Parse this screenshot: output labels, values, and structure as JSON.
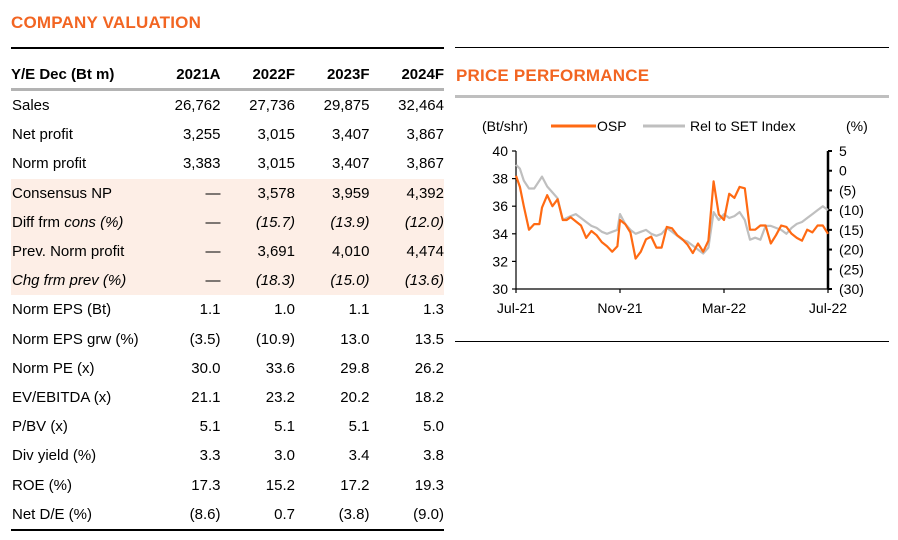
{
  "valuation": {
    "title": "COMPANY VALUATION",
    "header": {
      "label": "Y/E Dec (Bt m)",
      "years": [
        "2021A",
        "2022F",
        "2023F",
        "2024F"
      ]
    },
    "rows": [
      {
        "label": "Sales",
        "values": [
          "26,762",
          "27,736",
          "29,875",
          "32,464"
        ],
        "shaded": false
      },
      {
        "label": "Net profit",
        "values": [
          "3,255",
          "3,015",
          "3,407",
          "3,867"
        ],
        "shaded": false
      },
      {
        "label": "Norm profit",
        "values": [
          "3,383",
          "3,015",
          "3,407",
          "3,867"
        ],
        "shaded": false
      },
      {
        "label": "Consensus NP",
        "values": [
          "—",
          "3,578",
          "3,959",
          "4,392"
        ],
        "shaded": true
      },
      {
        "label_plain": "Diff frm ",
        "label_italic": "cons (%)",
        "values": [
          "—",
          "(15.7)",
          "(13.9)",
          "(12.0)"
        ],
        "shaded": true,
        "italic_values": true
      },
      {
        "label": "Prev. Norm profit",
        "values": [
          "—",
          "3,691",
          "4,010",
          "4,474"
        ],
        "shaded": true
      },
      {
        "label_italic_full": "Chg frm prev (%)",
        "values": [
          "—",
          "(18.3)",
          "(15.0)",
          "(13.6)"
        ],
        "shaded": true,
        "italic_values": true
      },
      {
        "label": "Norm EPS (Bt)",
        "values": [
          "1.1",
          "1.0",
          "1.1",
          "1.3"
        ],
        "shaded": false
      },
      {
        "label": "Norm EPS grw (%)",
        "values": [
          "(3.5)",
          "(10.9)",
          "13.0",
          "13.5"
        ],
        "shaded": false
      },
      {
        "label": "Norm PE (x)",
        "values": [
          "30.0",
          "33.6",
          "29.8",
          "26.2"
        ],
        "shaded": false
      },
      {
        "label": "EV/EBITDA (x)",
        "values": [
          "21.1",
          "23.2",
          "20.2",
          "18.2"
        ],
        "shaded": false
      },
      {
        "label": "P/BV (x)",
        "values": [
          "5.1",
          "5.1",
          "5.1",
          "5.0"
        ],
        "shaded": false
      },
      {
        "label": "Div yield (%)",
        "values": [
          "3.3",
          "3.0",
          "3.4",
          "3.8"
        ],
        "shaded": false
      },
      {
        "label": "ROE (%)",
        "values": [
          "17.3",
          "15.2",
          "17.2",
          "19.3"
        ],
        "shaded": false
      },
      {
        "label": "Net D/E (%)",
        "values": [
          "(8.6)",
          "0.7",
          "(3.8)",
          "(9.0)"
        ],
        "shaded": false
      }
    ]
  },
  "price_performance": {
    "title": "PRICE PERFORMANCE"
  },
  "colors": {
    "accent": "#f26522",
    "osp": "#ff6a13",
    "rel": "#bfbfbf",
    "shade": "#fdeee6"
  },
  "chart_data": {
    "type": "line",
    "title": "PRICE PERFORMANCE",
    "ylabel_left": "(Bt/shr)",
    "ylabel_right": "(%)",
    "xlabel": "",
    "x_tick_labels": [
      "Jul-21",
      "Nov-21",
      "Mar-22",
      "Jul-22"
    ],
    "x_range_months": [
      0,
      12
    ],
    "ylim_left": [
      30,
      40
    ],
    "yticks_left": [
      "40",
      "38",
      "36",
      "34",
      "32",
      "30"
    ],
    "ylim_right": [
      -30,
      5
    ],
    "yticks_right": [
      "5",
      "0",
      "(5)",
      "(10)",
      "(15)",
      "(20)",
      "(25)",
      "(30)"
    ],
    "legend": [
      "OSP",
      "Rel to SET Index"
    ],
    "legend_position": "top",
    "grid": false,
    "series": [
      {
        "name": "OSP",
        "axis": "left",
        "x": [
          0,
          0.15,
          0.3,
          0.5,
          0.7,
          0.9,
          1.0,
          1.2,
          1.4,
          1.6,
          1.8,
          1.95,
          2.1,
          2.3,
          2.5,
          2.7,
          2.9,
          3.1,
          3.3,
          3.5,
          3.7,
          3.9,
          4.0,
          4.2,
          4.4,
          4.6,
          4.8,
          5.0,
          5.2,
          5.4,
          5.6,
          5.8,
          6.0,
          6.2,
          6.4,
          6.6,
          6.8,
          7.0,
          7.2,
          7.4,
          7.6,
          7.8,
          8.0,
          8.2,
          8.4,
          8.6,
          8.8,
          9.0,
          9.2,
          9.4,
          9.6,
          9.8,
          10.0,
          10.2,
          10.4,
          10.6,
          10.8,
          11.0,
          11.2,
          11.4,
          11.6,
          11.8,
          12.0
        ],
        "y": [
          38.2,
          37.4,
          36.0,
          34.3,
          34.7,
          34.7,
          35.9,
          36.8,
          36.0,
          36.5,
          35.0,
          35.0,
          35.2,
          34.9,
          34.6,
          33.7,
          34.2,
          33.9,
          33.4,
          33.1,
          32.7,
          33.1,
          35.0,
          34.7,
          34.1,
          32.2,
          32.7,
          33.6,
          33.8,
          33.0,
          33.0,
          34.5,
          34.4,
          33.9,
          33.6,
          33.2,
          32.6,
          33.3,
          32.7,
          33.5,
          37.8,
          35.4,
          35.0,
          36.9,
          36.6,
          37.4,
          37.3,
          34.3,
          34.3,
          34.6,
          34.6,
          33.3,
          33.9,
          34.6,
          34.5,
          34.0,
          33.7,
          33.5,
          34.3,
          34.1,
          34.6,
          34.6,
          34.0
        ]
      },
      {
        "name": "Rel to SET Index",
        "axis": "right",
        "x": [
          0,
          0.15,
          0.3,
          0.5,
          0.7,
          0.9,
          1.0,
          1.2,
          1.4,
          1.6,
          1.8,
          1.95,
          2.1,
          2.3,
          2.5,
          2.7,
          2.9,
          3.1,
          3.3,
          3.5,
          3.7,
          3.9,
          4.0,
          4.2,
          4.4,
          4.6,
          4.8,
          5.0,
          5.2,
          5.4,
          5.6,
          5.8,
          6.0,
          6.2,
          6.4,
          6.6,
          6.8,
          7.0,
          7.2,
          7.4,
          7.6,
          7.8,
          8.0,
          8.2,
          8.4,
          8.6,
          8.8,
          9.0,
          9.2,
          9.4,
          9.6,
          9.8,
          10.0,
          10.2,
          10.4,
          10.6,
          10.8,
          11.0,
          11.2,
          11.4,
          11.6,
          11.8,
          12.0
        ],
        "y": [
          1.5,
          0.5,
          -2.5,
          -4.5,
          -4.5,
          -2.5,
          -1.5,
          -4.0,
          -5.5,
          -7.0,
          -12.5,
          -12.0,
          -11.5,
          -11.0,
          -12.0,
          -13.0,
          -14.0,
          -14.5,
          -15.5,
          -16.0,
          -15.5,
          -15.0,
          -11.0,
          -13.5,
          -15.0,
          -16.0,
          -15.5,
          -15.0,
          -16.0,
          -16.5,
          -16.0,
          -14.5,
          -15.5,
          -16.5,
          -17.5,
          -18.0,
          -19.0,
          -20.0,
          -21.0,
          -19.5,
          -10.5,
          -12.5,
          -11.0,
          -12.0,
          -11.5,
          -10.5,
          -12.5,
          -17.5,
          -17.0,
          -17.5,
          -14.0,
          -14.0,
          -14.5,
          -15.0,
          -16.0,
          -14.5,
          -13.5,
          -13.0,
          -12.0,
          -11.0,
          -10.0,
          -9.0,
          -10.0
        ]
      }
    ]
  }
}
